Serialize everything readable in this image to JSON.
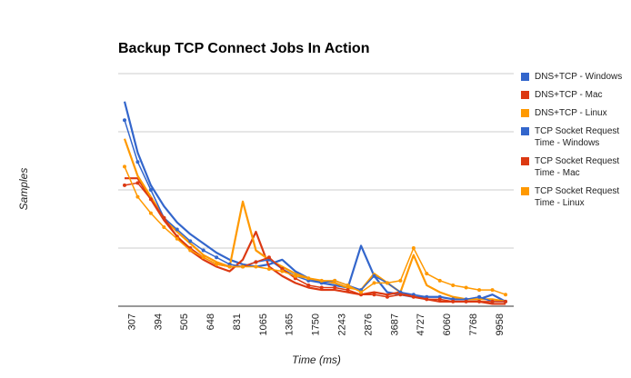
{
  "chart_data": {
    "type": "line",
    "title": "Backup TCP Connect Jobs In Action",
    "y_label": "Samples",
    "x_label": "Time (ms)",
    "categories": [
      null,
      "307",
      null,
      "394",
      null,
      "505",
      null,
      "648",
      null,
      "831",
      null,
      "1065",
      null,
      "1365",
      null,
      "1750",
      null,
      "2243",
      null,
      "2876",
      null,
      "3687",
      null,
      "4727",
      null,
      "6060",
      null,
      "7768",
      null,
      "9958"
    ],
    "ylim": [
      0,
      100
    ],
    "yticks": [
      0,
      25,
      50,
      75,
      100
    ],
    "grid": true,
    "series": [
      {
        "name": "DNS+TCP - Windows",
        "color": "#3366cc",
        "markers": false,
        "values": [
          88,
          66,
          52,
          43,
          36,
          31,
          27,
          23,
          20,
          18,
          17,
          18,
          20,
          15,
          12,
          10,
          9,
          8,
          26,
          13,
          6,
          5,
          4,
          4,
          4,
          3,
          3,
          3,
          5,
          2
        ]
      },
      {
        "name": "DNS+TCP - Mac",
        "color": "#dc3912",
        "markers": false,
        "values": [
          55,
          55,
          46,
          37,
          30,
          24,
          20,
          17,
          15,
          20,
          32,
          17,
          13,
          10,
          8,
          7,
          7,
          6,
          5,
          6,
          5,
          6,
          4,
          3,
          2,
          2,
          2,
          2,
          1,
          1
        ]
      },
      {
        "name": "DNS+TCP - Linux",
        "color": "#ff9900",
        "markers": false,
        "values": [
          72,
          56,
          47,
          38,
          32,
          27,
          22,
          19,
          17,
          45,
          24,
          20,
          17,
          14,
          12,
          11,
          10,
          8,
          7,
          14,
          10,
          6,
          22,
          9,
          6,
          4,
          3,
          3,
          3,
          2
        ]
      },
      {
        "name": "TCP Socket Request Time - Windows",
        "color": "#3366cc",
        "markers": true,
        "values": [
          80,
          62,
          50,
          38,
          33,
          28,
          24,
          21,
          18,
          17,
          19,
          20,
          16,
          13,
          11,
          10,
          11,
          9,
          7,
          13,
          10,
          6,
          5,
          4,
          4,
          3,
          3,
          4,
          2,
          2
        ]
      },
      {
        "name": "TCP Socket Request Time - Mac",
        "color": "#dc3912",
        "markers": true,
        "values": [
          52,
          53,
          46,
          38,
          30,
          25,
          21,
          18,
          17,
          17,
          19,
          21,
          16,
          12,
          9,
          8,
          8,
          7,
          5,
          5,
          4,
          5,
          4,
          3,
          3,
          2,
          2,
          2,
          2,
          2
        ]
      },
      {
        "name": "TCP Socket Request Time - Linux",
        "color": "#ff9900",
        "markers": true,
        "values": [
          60,
          47,
          40,
          34,
          29,
          24,
          21,
          18,
          17,
          17,
          17,
          16,
          15,
          13,
          12,
          11,
          11,
          9,
          6,
          10,
          10,
          11,
          25,
          14,
          11,
          9,
          8,
          7,
          7,
          5
        ]
      }
    ]
  }
}
